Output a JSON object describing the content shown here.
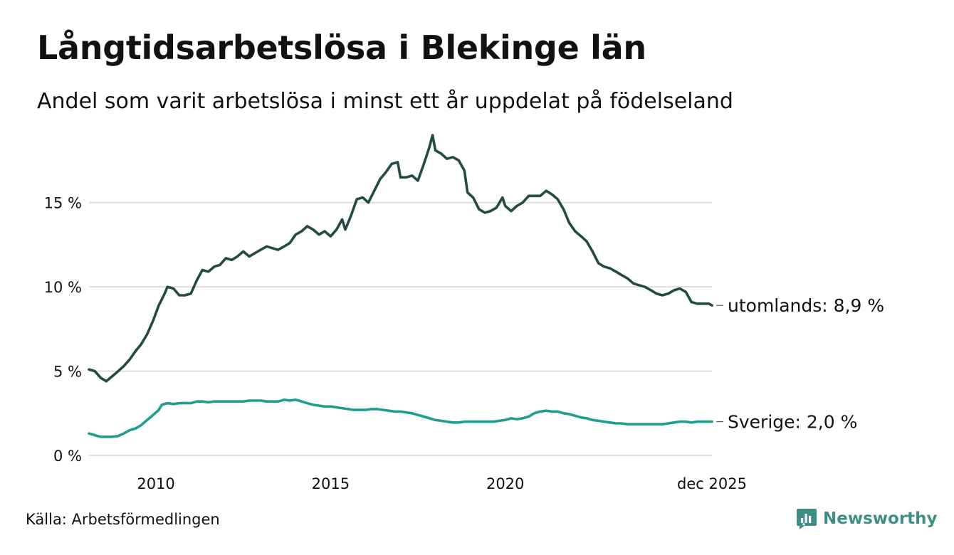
{
  "title": "Långtidsarbetslösa i Blekinge län",
  "subtitle": "Andel som varit arbetslösa i minst ett år uppdelat på födelseland",
  "source": "Källa: Arbetsförmedlingen",
  "brand": "Newsworthy",
  "colors": {
    "utomlands": "#234a45",
    "sverige": "#1d9e8f",
    "grid": "#dddddd",
    "brand": "#3d8f86"
  },
  "chart_data": {
    "type": "line",
    "x_start": 2008.083,
    "x_end": 2025.917,
    "ylim": [
      0,
      19
    ],
    "y_ticks": [
      {
        "value": 0,
        "label": "0 %"
      },
      {
        "value": 5,
        "label": "5 %"
      },
      {
        "value": 10,
        "label": "10 %"
      },
      {
        "value": 15,
        "label": "15 %"
      }
    ],
    "x_ticks": [
      {
        "value": 2010,
        "label": "2010"
      },
      {
        "value": 2015,
        "label": "2015"
      },
      {
        "value": 2020,
        "label": "2020"
      },
      {
        "value": 2025.917,
        "label": "dec 2025"
      }
    ],
    "series": [
      {
        "name": "utomlands",
        "end_label": "utomlands: 8,9 %",
        "color": "#234a45",
        "points": [
          [
            2008.08,
            5.1
          ],
          [
            2008.25,
            5.0
          ],
          [
            2008.42,
            4.6
          ],
          [
            2008.58,
            4.4
          ],
          [
            2008.75,
            4.7
          ],
          [
            2008.92,
            5.0
          ],
          [
            2009.08,
            5.3
          ],
          [
            2009.25,
            5.7
          ],
          [
            2009.42,
            6.2
          ],
          [
            2009.58,
            6.6
          ],
          [
            2009.75,
            7.2
          ],
          [
            2009.92,
            8.0
          ],
          [
            2010.08,
            8.9
          ],
          [
            2010.25,
            9.6
          ],
          [
            2010.33,
            10.0
          ],
          [
            2010.5,
            9.9
          ],
          [
            2010.67,
            9.5
          ],
          [
            2010.83,
            9.5
          ],
          [
            2011.0,
            9.6
          ],
          [
            2011.17,
            10.4
          ],
          [
            2011.33,
            11.0
          ],
          [
            2011.5,
            10.9
          ],
          [
            2011.67,
            11.2
          ],
          [
            2011.83,
            11.3
          ],
          [
            2012.0,
            11.7
          ],
          [
            2012.17,
            11.6
          ],
          [
            2012.33,
            11.8
          ],
          [
            2012.5,
            12.1
          ],
          [
            2012.67,
            11.8
          ],
          [
            2012.83,
            12.0
          ],
          [
            2013.0,
            12.2
          ],
          [
            2013.17,
            12.4
          ],
          [
            2013.33,
            12.3
          ],
          [
            2013.5,
            12.2
          ],
          [
            2013.67,
            12.4
          ],
          [
            2013.83,
            12.6
          ],
          [
            2014.0,
            13.1
          ],
          [
            2014.17,
            13.3
          ],
          [
            2014.33,
            13.6
          ],
          [
            2014.5,
            13.4
          ],
          [
            2014.67,
            13.1
          ],
          [
            2014.83,
            13.3
          ],
          [
            2015.0,
            13.0
          ],
          [
            2015.17,
            13.4
          ],
          [
            2015.33,
            14.0
          ],
          [
            2015.42,
            13.4
          ],
          [
            2015.58,
            14.2
          ],
          [
            2015.75,
            15.2
          ],
          [
            2015.92,
            15.3
          ],
          [
            2016.08,
            15.0
          ],
          [
            2016.25,
            15.7
          ],
          [
            2016.42,
            16.4
          ],
          [
            2016.58,
            16.8
          ],
          [
            2016.75,
            17.3
          ],
          [
            2016.92,
            17.4
          ],
          [
            2017.0,
            16.5
          ],
          [
            2017.17,
            16.5
          ],
          [
            2017.33,
            16.6
          ],
          [
            2017.5,
            16.3
          ],
          [
            2017.67,
            17.3
          ],
          [
            2017.83,
            18.3
          ],
          [
            2017.92,
            19.0
          ],
          [
            2018.0,
            18.1
          ],
          [
            2018.17,
            17.9
          ],
          [
            2018.33,
            17.6
          ],
          [
            2018.5,
            17.7
          ],
          [
            2018.67,
            17.5
          ],
          [
            2018.83,
            16.9
          ],
          [
            2018.92,
            15.6
          ],
          [
            2019.08,
            15.3
          ],
          [
            2019.25,
            14.6
          ],
          [
            2019.42,
            14.4
          ],
          [
            2019.58,
            14.5
          ],
          [
            2019.75,
            14.7
          ],
          [
            2019.92,
            15.3
          ],
          [
            2020.0,
            14.8
          ],
          [
            2020.17,
            14.5
          ],
          [
            2020.33,
            14.8
          ],
          [
            2020.5,
            15.0
          ],
          [
            2020.67,
            15.4
          ],
          [
            2020.83,
            15.4
          ],
          [
            2021.0,
            15.4
          ],
          [
            2021.17,
            15.7
          ],
          [
            2021.33,
            15.5
          ],
          [
            2021.5,
            15.2
          ],
          [
            2021.67,
            14.6
          ],
          [
            2021.83,
            13.8
          ],
          [
            2022.0,
            13.3
          ],
          [
            2022.17,
            13.0
          ],
          [
            2022.33,
            12.7
          ],
          [
            2022.5,
            12.1
          ],
          [
            2022.67,
            11.4
          ],
          [
            2022.83,
            11.2
          ],
          [
            2023.0,
            11.1
          ],
          [
            2023.17,
            10.9
          ],
          [
            2023.33,
            10.7
          ],
          [
            2023.5,
            10.5
          ],
          [
            2023.67,
            10.2
          ],
          [
            2023.83,
            10.1
          ],
          [
            2024.0,
            10.0
          ],
          [
            2024.17,
            9.8
          ],
          [
            2024.33,
            9.6
          ],
          [
            2024.5,
            9.5
          ],
          [
            2024.67,
            9.6
          ],
          [
            2024.83,
            9.8
          ],
          [
            2025.0,
            9.9
          ],
          [
            2025.17,
            9.7
          ],
          [
            2025.33,
            9.1
          ],
          [
            2025.5,
            9.0
          ],
          [
            2025.67,
            9.0
          ],
          [
            2025.83,
            9.0
          ],
          [
            2025.92,
            8.9
          ]
        ]
      },
      {
        "name": "Sverige",
        "end_label": "Sverige: 2,0 %",
        "color": "#1d9e8f",
        "points": [
          [
            2008.08,
            1.3
          ],
          [
            2008.25,
            1.2
          ],
          [
            2008.42,
            1.1
          ],
          [
            2008.58,
            1.1
          ],
          [
            2008.75,
            1.1
          ],
          [
            2008.92,
            1.15
          ],
          [
            2009.08,
            1.3
          ],
          [
            2009.25,
            1.5
          ],
          [
            2009.42,
            1.6
          ],
          [
            2009.58,
            1.8
          ],
          [
            2009.75,
            2.1
          ],
          [
            2009.92,
            2.4
          ],
          [
            2010.08,
            2.7
          ],
          [
            2010.17,
            3.0
          ],
          [
            2010.33,
            3.1
          ],
          [
            2010.5,
            3.05
          ],
          [
            2010.67,
            3.1
          ],
          [
            2010.83,
            3.1
          ],
          [
            2011.0,
            3.1
          ],
          [
            2011.17,
            3.2
          ],
          [
            2011.33,
            3.2
          ],
          [
            2011.5,
            3.15
          ],
          [
            2011.67,
            3.2
          ],
          [
            2011.83,
            3.2
          ],
          [
            2012.0,
            3.2
          ],
          [
            2012.33,
            3.2
          ],
          [
            2012.5,
            3.2
          ],
          [
            2012.67,
            3.25
          ],
          [
            2012.83,
            3.25
          ],
          [
            2013.0,
            3.25
          ],
          [
            2013.17,
            3.2
          ],
          [
            2013.33,
            3.2
          ],
          [
            2013.5,
            3.2
          ],
          [
            2013.67,
            3.3
          ],
          [
            2013.83,
            3.25
          ],
          [
            2014.0,
            3.3
          ],
          [
            2014.17,
            3.2
          ],
          [
            2014.33,
            3.1
          ],
          [
            2014.5,
            3.0
          ],
          [
            2014.67,
            2.95
          ],
          [
            2014.83,
            2.9
          ],
          [
            2015.0,
            2.9
          ],
          [
            2015.17,
            2.85
          ],
          [
            2015.33,
            2.8
          ],
          [
            2015.5,
            2.75
          ],
          [
            2015.67,
            2.7
          ],
          [
            2015.83,
            2.7
          ],
          [
            2016.0,
            2.7
          ],
          [
            2016.17,
            2.75
          ],
          [
            2016.33,
            2.75
          ],
          [
            2016.5,
            2.7
          ],
          [
            2016.67,
            2.65
          ],
          [
            2016.83,
            2.6
          ],
          [
            2017.0,
            2.6
          ],
          [
            2017.17,
            2.55
          ],
          [
            2017.33,
            2.5
          ],
          [
            2017.5,
            2.4
          ],
          [
            2017.67,
            2.3
          ],
          [
            2017.83,
            2.2
          ],
          [
            2018.0,
            2.1
          ],
          [
            2018.17,
            2.05
          ],
          [
            2018.33,
            2.0
          ],
          [
            2018.5,
            1.95
          ],
          [
            2018.67,
            1.95
          ],
          [
            2018.83,
            2.0
          ],
          [
            2019.0,
            2.0
          ],
          [
            2019.17,
            2.0
          ],
          [
            2019.33,
            2.0
          ],
          [
            2019.5,
            2.0
          ],
          [
            2019.67,
            2.0
          ],
          [
            2019.83,
            2.05
          ],
          [
            2020.0,
            2.1
          ],
          [
            2020.17,
            2.2
          ],
          [
            2020.33,
            2.15
          ],
          [
            2020.5,
            2.2
          ],
          [
            2020.67,
            2.3
          ],
          [
            2020.83,
            2.5
          ],
          [
            2021.0,
            2.6
          ],
          [
            2021.17,
            2.65
          ],
          [
            2021.33,
            2.6
          ],
          [
            2021.5,
            2.6
          ],
          [
            2021.67,
            2.5
          ],
          [
            2021.83,
            2.45
          ],
          [
            2022.0,
            2.35
          ],
          [
            2022.17,
            2.25
          ],
          [
            2022.33,
            2.2
          ],
          [
            2022.5,
            2.1
          ],
          [
            2022.67,
            2.05
          ],
          [
            2022.83,
            2.0
          ],
          [
            2023.0,
            1.95
          ],
          [
            2023.17,
            1.9
          ],
          [
            2023.33,
            1.9
          ],
          [
            2023.5,
            1.85
          ],
          [
            2023.67,
            1.85
          ],
          [
            2023.83,
            1.85
          ],
          [
            2024.0,
            1.85
          ],
          [
            2024.17,
            1.85
          ],
          [
            2024.33,
            1.85
          ],
          [
            2024.5,
            1.85
          ],
          [
            2024.67,
            1.9
          ],
          [
            2024.83,
            1.95
          ],
          [
            2025.0,
            2.0
          ],
          [
            2025.17,
            2.0
          ],
          [
            2025.33,
            1.95
          ],
          [
            2025.5,
            2.0
          ],
          [
            2025.67,
            2.0
          ],
          [
            2025.83,
            2.0
          ],
          [
            2025.92,
            2.0
          ]
        ]
      }
    ]
  }
}
